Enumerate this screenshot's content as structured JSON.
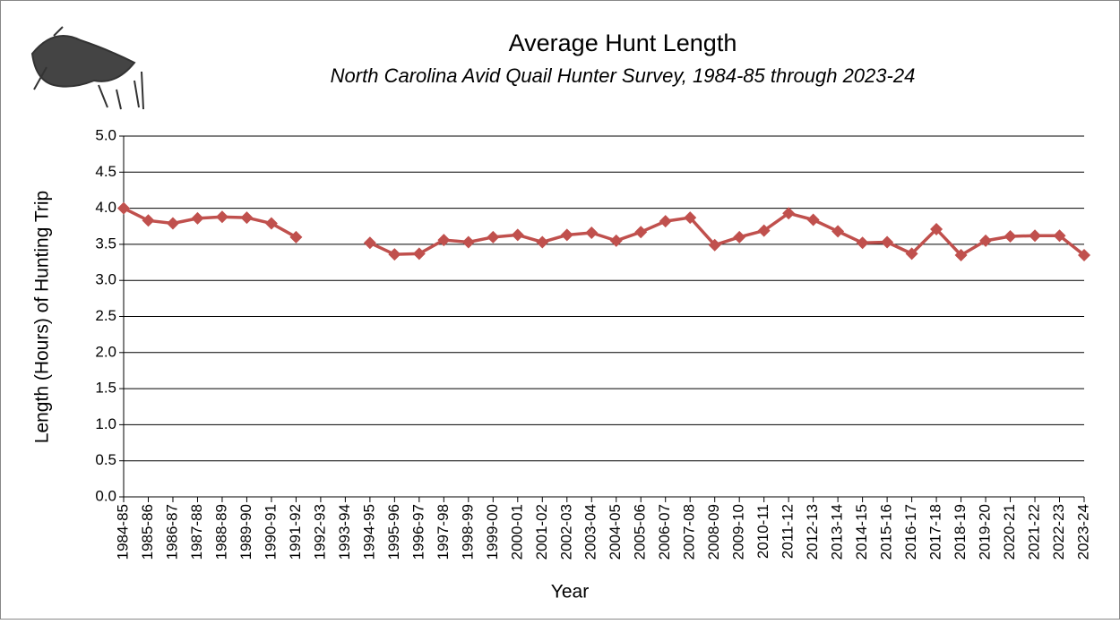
{
  "chart_data": {
    "type": "line",
    "title": "Average Hunt Length",
    "subtitle": "North Carolina Avid Quail Hunter Survey, 1984-85 through 2023-24",
    "x_label": "Year",
    "y_label": "Length (Hours) of Hunting Trip",
    "categories": [
      "1984-85",
      "1985-86",
      "1986-87",
      "1987-88",
      "1988-89",
      "1989-90",
      "1990-91",
      "1991-92",
      "1992-93",
      "1993-94",
      "1994-95",
      "1995-96",
      "1996-97",
      "1997-98",
      "1998-99",
      "1999-00",
      "2000-01",
      "2001-02",
      "2002-03",
      "2003-04",
      "2004-05",
      "2005-06",
      "2006-07",
      "2007-08",
      "2008-09",
      "2009-10",
      "2010-11",
      "2011-12",
      "2012-13",
      "2013-14",
      "2014-15",
      "2015-16",
      "2016-17",
      "2017-18",
      "2018-19",
      "2019-20",
      "2020-21",
      "2021-22",
      "2022-23",
      "2023-24"
    ],
    "values": [
      4.0,
      3.83,
      3.79,
      3.86,
      3.88,
      3.87,
      3.79,
      3.6,
      null,
      null,
      3.52,
      3.36,
      3.37,
      3.56,
      3.53,
      3.6,
      3.63,
      3.53,
      3.63,
      3.66,
      3.55,
      3.67,
      3.82,
      3.87,
      3.49,
      3.6,
      3.69,
      3.93,
      3.84,
      3.68,
      3.52,
      3.53,
      3.37,
      3.71,
      3.35,
      3.55,
      3.61,
      3.62,
      3.62,
      3.35
    ],
    "color": "#c0504d",
    "ylim": [
      0,
      5
    ],
    "yticks": [
      {
        "value": 0,
        "label": "0.0"
      },
      0.5,
      {
        "value": 1,
        "label": "1.0"
      },
      1.5,
      {
        "value": 2,
        "label": "2.0"
      },
      2.5,
      {
        "value": 3,
        "label": "3.0"
      },
      3.5,
      {
        "value": 4,
        "label": "4.0"
      },
      4.5,
      {
        "value": 5,
        "label": "5.0"
      }
    ],
    "grid": true
  }
}
